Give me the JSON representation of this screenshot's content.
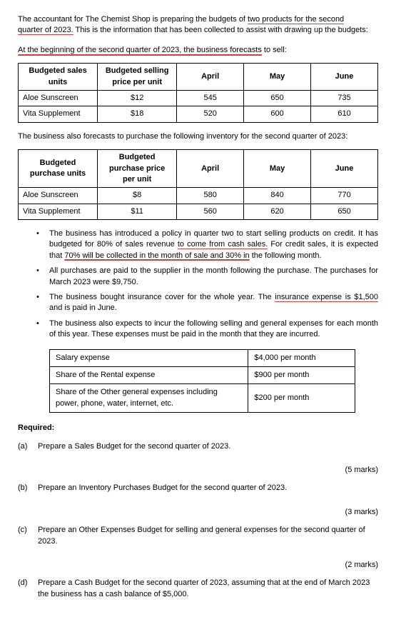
{
  "intro": {
    "part1": "The accountant for The Chemist Shop is preparing the budgets of ",
    "underlined1": "two products for the second",
    "part2": "quarter of 2023.",
    "part3": " This is the information that has been collected to assist with drawing up the budgets:"
  },
  "forecast": {
    "prefix": "At the beginning of the second quarter of 2023, the business forecasts",
    "suffix": " to sell:"
  },
  "sales_table": {
    "headers": [
      "Budgeted sales units",
      "Budgeted selling price per unit",
      "April",
      "May",
      "June"
    ],
    "rows": [
      [
        "Aloe Sunscreen",
        "$12",
        "545",
        "650",
        "735"
      ],
      [
        "Vita Supplement",
        "$18",
        "520",
        "600",
        "610"
      ]
    ]
  },
  "purchase_intro": "The business also forecasts to purchase the following inventory for the second quarter of 2023:",
  "purchase_table": {
    "headers": [
      "Budgeted purchase units",
      "Budgeted purchase price per unit",
      "April",
      "May",
      "June"
    ],
    "rows": [
      [
        "Aloe Sunscreen",
        "$8",
        "580",
        "840",
        "770"
      ],
      [
        "Vita Supplement",
        "$11",
        "560",
        "620",
        "650"
      ]
    ]
  },
  "bullets": {
    "b1a": "The business has introduced a policy in quarter two to start selling products on credit. It has budgeted for 80% of sales revenue ",
    "b1u1": "to come from cash sales.",
    "b1b": " For credit sales, it is expected that ",
    "b1u2": "70% will be collected in the month of sale and 30% in",
    "b1c": " the following month.",
    "b2": "All purchases are paid to the supplier in the month following the purchase. The purchases for March 2023 were $9,750.",
    "b3a": "The business bought insurance cover for the whole year. The ",
    "b3u": "insurance expense is $1,500",
    "b3b": " and is paid in June.",
    "b4": "The business also expects to incur the following selling and general expenses for each month of this year. These expenses must be paid in the month that they are incurred."
  },
  "expense_table": {
    "rows": [
      [
        "Salary expense",
        "$4,000 per month"
      ],
      [
        "Share of the Rental expense",
        "$900 per month"
      ],
      [
        "Share of the Other general expenses including power, phone, water, internet, etc.",
        "$200 per month"
      ]
    ]
  },
  "required_label": "Required:",
  "requirements": {
    "a": {
      "label": "(a)",
      "text": "Prepare a Sales Budget for the second quarter of 2023.",
      "marks": "(5 marks)"
    },
    "b": {
      "label": "(b)",
      "text": "Prepare an Inventory Purchases Budget for the second quarter of 2023.",
      "marks": "(3 marks)"
    },
    "c": {
      "label": "(c)",
      "text": "Prepare an Other Expenses Budget for selling and general expenses for the second quarter of 2023.",
      "marks": "(2 marks)"
    },
    "d": {
      "label": "(d)",
      "text": "Prepare a Cash Budget for the second quarter of 2023, assuming that at the end of March 2023 the business has a cash balance of $5,000."
    }
  }
}
